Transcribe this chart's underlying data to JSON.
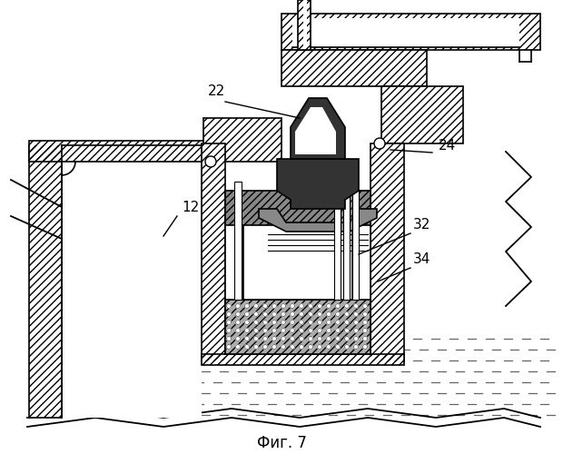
{
  "title": "Фиг. 7",
  "bg_color": "#ffffff",
  "figsize": [
    6.2,
    5.0
  ],
  "dpi": 100
}
